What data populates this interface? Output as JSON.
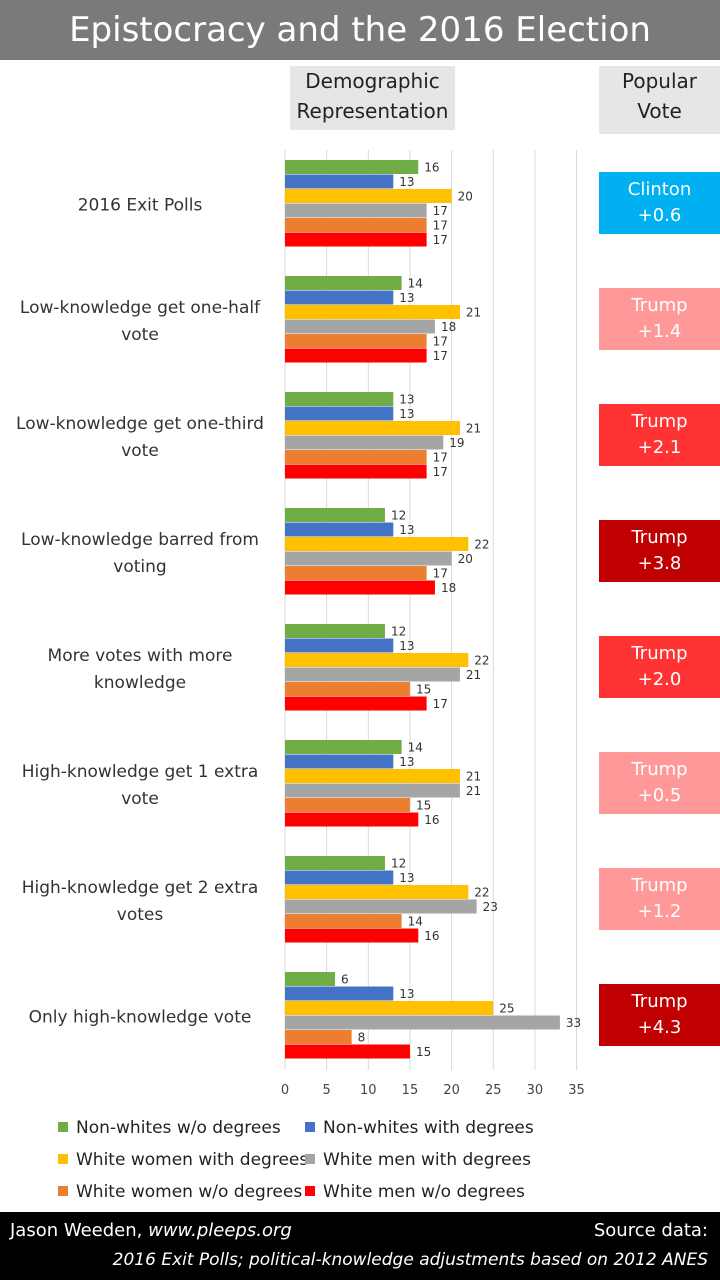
{
  "title": "Epistocracy and the 2016 Election",
  "headers": {
    "demographic_line1": "Demographic",
    "demographic_line2": "Representation",
    "popular_line1": "Popular",
    "popular_line2": "Vote"
  },
  "colors": {
    "Non-whites w/o degrees": "#70ad47",
    "Non-whites with degrees": "#4472c4",
    "White women with degrees": "#ffc000",
    "White men with degrees": "#a5a5a5",
    "White women w/o degrees": "#ed7d31",
    "White men w/o degrees": "#ff0000",
    "clinton": "#00b0f0",
    "trump_light": "#ff9999",
    "trump_mid": "#ff3333",
    "trump_dark": "#c00000"
  },
  "chart_data": {
    "type": "bar",
    "orientation": "horizontal",
    "categories": [
      "2016 Exit Polls",
      "Low-knowledge get one-half vote",
      "Low-knowledge get one-third vote",
      "Low-knowledge barred from voting",
      "More votes with more knowledge",
      "High-knowledge get 1 extra vote",
      "High-knowledge get 2 extra votes",
      "Only high-knowledge vote"
    ],
    "category_lines": [
      [
        "2016 Exit Polls"
      ],
      [
        "Low-knowledge get one-half",
        "vote"
      ],
      [
        "Low-knowledge get one-third",
        "vote"
      ],
      [
        "Low-knowledge barred from",
        "voting"
      ],
      [
        "More votes with more",
        "knowledge"
      ],
      [
        "High-knowledge get 1 extra",
        "vote"
      ],
      [
        "High-knowledge get 2 extra",
        "votes"
      ],
      [
        "Only high-knowledge vote"
      ]
    ],
    "series": [
      {
        "name": "Non-whites w/o degrees",
        "values": [
          16,
          14,
          13,
          12,
          12,
          14,
          12,
          6
        ]
      },
      {
        "name": "Non-whites with degrees",
        "values": [
          13,
          13,
          13,
          13,
          13,
          13,
          13,
          13
        ]
      },
      {
        "name": "White women with degrees",
        "values": [
          20,
          21,
          21,
          22,
          22,
          21,
          22,
          25
        ]
      },
      {
        "name": "White men with degrees",
        "values": [
          17,
          18,
          19,
          20,
          21,
          21,
          23,
          33
        ]
      },
      {
        "name": "White women w/o degrees",
        "values": [
          17,
          17,
          17,
          17,
          15,
          15,
          14,
          8
        ]
      },
      {
        "name": "White men w/o degrees",
        "values": [
          17,
          17,
          17,
          18,
          17,
          16,
          16,
          15
        ]
      }
    ],
    "xlim": [
      0,
      35
    ],
    "xticks": [
      0,
      5,
      10,
      15,
      20,
      25,
      30,
      35
    ],
    "grid": true,
    "legend_placement": "bottom"
  },
  "popular_vote": [
    {
      "line1": "Clinton",
      "line2": "+0.6",
      "color": "clinton"
    },
    {
      "line1": "Trump",
      "line2": "+1.4",
      "color": "trump_light"
    },
    {
      "line1": "Trump",
      "line2": "+2.1",
      "color": "trump_mid"
    },
    {
      "line1": "Trump",
      "line2": "+3.8",
      "color": "trump_dark"
    },
    {
      "line1": "Trump",
      "line2": "+2.0",
      "color": "trump_mid"
    },
    {
      "line1": "Trump",
      "line2": "+0.5",
      "color": "trump_light"
    },
    {
      "line1": "Trump",
      "line2": "+1.2",
      "color": "trump_light"
    },
    {
      "line1": "Trump",
      "line2": "+4.3",
      "color": "trump_dark"
    }
  ],
  "footer": {
    "author": "Jason Weeden, ",
    "author_url": "www.pleeps.org",
    "source_label": "Source data:",
    "source_text": "2016 Exit Polls; political-knowledge adjustments based on 2012 ANES"
  }
}
